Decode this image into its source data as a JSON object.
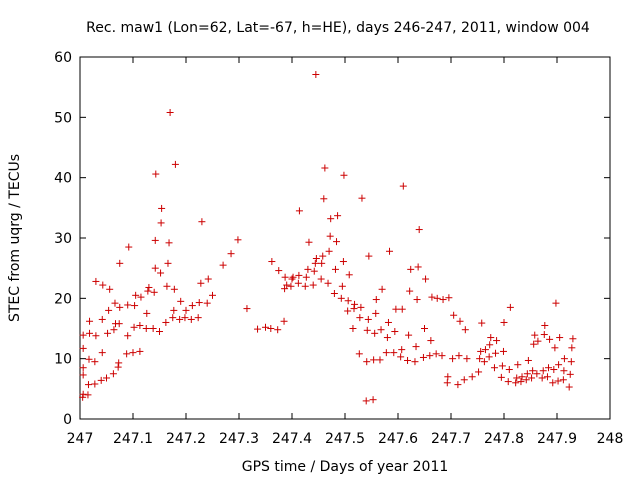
{
  "chart_data": {
    "type": "scatter",
    "title": "Rec. maw1 (Lon=62, Lat=-67, h=HE), days 246-247, 2011, window 004",
    "xlabel": "GPS time / Days of year 2011",
    "ylabel": "STEC from uqrg / TECUs",
    "xlim": [
      247,
      248
    ],
    "ylim": [
      0,
      60
    ],
    "xticks": [
      247,
      247.1,
      247.2,
      247.3,
      247.4,
      247.5,
      247.6,
      247.7,
      247.8,
      247.9,
      248
    ],
    "xtick_labels": [
      "247",
      "247.1",
      "247.2",
      "247.3",
      "247.4",
      "247.5",
      "247.6",
      "247.7",
      "247.8",
      "247.9",
      "248"
    ],
    "yticks": [
      0,
      10,
      20,
      30,
      40,
      50,
      60
    ],
    "ytick_labels": [
      "0",
      "10",
      "20",
      "30",
      "40",
      "50",
      "60"
    ],
    "grid": false,
    "marker": "+",
    "marker_color": "#cc0000",
    "points": [
      [
        247.005,
        3.6
      ],
      [
        247.006,
        4.1
      ],
      [
        247.006,
        7.3
      ],
      [
        247.006,
        8.5
      ],
      [
        247.006,
        11.7
      ],
      [
        247.006,
        13.9
      ],
      [
        247.015,
        4.0
      ],
      [
        247.016,
        5.7
      ],
      [
        247.017,
        9.9
      ],
      [
        247.018,
        14.2
      ],
      [
        247.018,
        16.2
      ],
      [
        247.028,
        5.8
      ],
      [
        247.028,
        9.5
      ],
      [
        247.03,
        13.8
      ],
      [
        247.03,
        22.8
      ],
      [
        247.04,
        6.4
      ],
      [
        247.042,
        11.0
      ],
      [
        247.042,
        16.5
      ],
      [
        247.043,
        22.2
      ],
      [
        247.05,
        6.8
      ],
      [
        247.052,
        14.2
      ],
      [
        247.054,
        18.0
      ],
      [
        247.056,
        21.5
      ],
      [
        247.063,
        7.5
      ],
      [
        247.064,
        14.8
      ],
      [
        247.066,
        19.2
      ],
      [
        247.067,
        15.8
      ],
      [
        247.072,
        8.6
      ],
      [
        247.073,
        9.3
      ],
      [
        247.074,
        15.8
      ],
      [
        247.075,
        18.5
      ],
      [
        247.075,
        25.8
      ],
      [
        247.088,
        10.8
      ],
      [
        247.09,
        13.8
      ],
      [
        247.09,
        18.9
      ],
      [
        247.092,
        28.5
      ],
      [
        247.1,
        11.0
      ],
      [
        247.102,
        15.2
      ],
      [
        247.103,
        18.8
      ],
      [
        247.105,
        20.5
      ],
      [
        247.113,
        11.2
      ],
      [
        247.113,
        15.5
      ],
      [
        247.115,
        20.2
      ],
      [
        247.125,
        15.0
      ],
      [
        247.126,
        17.5
      ],
      [
        247.128,
        21.2
      ],
      [
        247.13,
        21.8
      ],
      [
        247.138,
        15.0
      ],
      [
        247.14,
        21.0
      ],
      [
        247.142,
        25.0
      ],
      [
        247.142,
        29.6
      ],
      [
        247.143,
        40.6
      ],
      [
        247.15,
        14.5
      ],
      [
        247.152,
        24.2
      ],
      [
        247.153,
        32.5
      ],
      [
        247.154,
        34.9
      ],
      [
        247.162,
        16.0
      ],
      [
        247.164,
        22.0
      ],
      [
        247.166,
        25.8
      ],
      [
        247.168,
        29.2
      ],
      [
        247.17,
        50.8
      ],
      [
        247.175,
        16.8
      ],
      [
        247.177,
        18.0
      ],
      [
        247.178,
        21.5
      ],
      [
        247.18,
        42.2
      ],
      [
        247.188,
        16.5
      ],
      [
        247.19,
        19.5
      ],
      [
        247.198,
        16.8
      ],
      [
        247.2,
        18.0
      ],
      [
        247.21,
        16.5
      ],
      [
        247.212,
        18.8
      ],
      [
        247.223,
        16.8
      ],
      [
        247.225,
        19.3
      ],
      [
        247.228,
        22.5
      ],
      [
        247.23,
        32.7
      ],
      [
        247.24,
        19.2
      ],
      [
        247.242,
        23.2
      ],
      [
        247.25,
        20.5
      ],
      [
        247.27,
        25.5
      ],
      [
        247.285,
        27.4
      ],
      [
        247.298,
        29.7
      ],
      [
        247.315,
        18.3
      ],
      [
        247.335,
        14.9
      ],
      [
        247.35,
        15.2
      ],
      [
        247.36,
        15.0
      ],
      [
        247.362,
        26.1
      ],
      [
        247.373,
        14.8
      ],
      [
        247.375,
        24.6
      ],
      [
        247.385,
        16.2
      ],
      [
        247.386,
        21.6
      ],
      [
        247.387,
        23.5
      ],
      [
        247.39,
        22.2
      ],
      [
        247.398,
        22.0
      ],
      [
        247.4,
        23.2
      ],
      [
        247.402,
        23.5
      ],
      [
        247.412,
        22.5
      ],
      [
        247.413,
        23.8
      ],
      [
        247.414,
        34.5
      ],
      [
        247.425,
        22.0
      ],
      [
        247.427,
        23.5
      ],
      [
        247.43,
        24.8
      ],
      [
        247.432,
        29.3
      ],
      [
        247.44,
        22.2
      ],
      [
        247.442,
        24.5
      ],
      [
        247.444,
        25.8
      ],
      [
        247.445,
        57.1
      ],
      [
        247.446,
        26.6
      ],
      [
        247.455,
        23.2
      ],
      [
        247.456,
        25.8
      ],
      [
        247.458,
        27.0
      ],
      [
        247.46,
        36.5
      ],
      [
        247.462,
        41.6
      ],
      [
        247.468,
        22.5
      ],
      [
        247.47,
        27.8
      ],
      [
        247.472,
        30.3
      ],
      [
        247.473,
        33.2
      ],
      [
        247.48,
        20.8
      ],
      [
        247.482,
        24.8
      ],
      [
        247.484,
        29.4
      ],
      [
        247.486,
        33.7
      ],
      [
        247.493,
        20.0
      ],
      [
        247.495,
        22.0
      ],
      [
        247.497,
        26.1
      ],
      [
        247.498,
        40.4
      ],
      [
        247.505,
        17.9
      ],
      [
        247.506,
        19.6
      ],
      [
        247.508,
        23.9
      ],
      [
        247.515,
        15.0
      ],
      [
        247.517,
        18.3
      ],
      [
        247.518,
        19.0
      ],
      [
        247.527,
        10.8
      ],
      [
        247.528,
        16.8
      ],
      [
        247.53,
        18.5
      ],
      [
        247.532,
        36.6
      ],
      [
        247.54,
        3.0
      ],
      [
        247.541,
        9.5
      ],
      [
        247.542,
        14.7
      ],
      [
        247.544,
        16.5
      ],
      [
        247.545,
        27.0
      ],
      [
        247.553,
        3.2
      ],
      [
        247.554,
        9.8
      ],
      [
        247.556,
        14.2
      ],
      [
        247.558,
        17.5
      ],
      [
        247.559,
        19.8
      ],
      [
        247.566,
        9.8
      ],
      [
        247.568,
        14.8
      ],
      [
        247.57,
        21.5
      ],
      [
        247.578,
        11.0
      ],
      [
        247.58,
        13.5
      ],
      [
        247.582,
        16.0
      ],
      [
        247.584,
        27.8
      ],
      [
        247.592,
        11.0
      ],
      [
        247.594,
        14.5
      ],
      [
        247.596,
        18.2
      ],
      [
        247.605,
        10.3
      ],
      [
        247.607,
        11.5
      ],
      [
        247.608,
        18.2
      ],
      [
        247.61,
        38.6
      ],
      [
        247.618,
        9.7
      ],
      [
        247.62,
        13.9
      ],
      [
        247.622,
        21.2
      ],
      [
        247.624,
        24.8
      ],
      [
        247.632,
        9.5
      ],
      [
        247.634,
        12.0
      ],
      [
        247.636,
        19.8
      ],
      [
        247.638,
        25.2
      ],
      [
        247.64,
        31.4
      ],
      [
        247.648,
        10.2
      ],
      [
        247.65,
        15.0
      ],
      [
        247.652,
        23.2
      ],
      [
        247.66,
        10.5
      ],
      [
        247.662,
        13.0
      ],
      [
        247.664,
        20.2
      ],
      [
        247.672,
        10.8
      ],
      [
        247.674,
        20.0
      ],
      [
        247.683,
        10.5
      ],
      [
        247.685,
        19.8
      ],
      [
        247.693,
        6.0
      ],
      [
        247.694,
        7.0
      ],
      [
        247.696,
        20.1
      ],
      [
        247.703,
        10.0
      ],
      [
        247.705,
        17.2
      ],
      [
        247.713,
        5.7
      ],
      [
        247.715,
        10.5
      ],
      [
        247.717,
        16.2
      ],
      [
        247.725,
        6.5
      ],
      [
        247.727,
        14.8
      ],
      [
        247.73,
        10.0
      ],
      [
        247.74,
        7.0
      ],
      [
        247.752,
        7.8
      ],
      [
        247.754,
        10.0
      ],
      [
        247.756,
        11.2
      ],
      [
        247.758,
        15.9
      ],
      [
        247.763,
        9.5
      ],
      [
        247.765,
        11.5
      ],
      [
        247.772,
        10.3
      ],
      [
        247.773,
        12.3
      ],
      [
        247.775,
        13.5
      ],
      [
        247.782,
        8.5
      ],
      [
        247.784,
        10.9
      ],
      [
        247.786,
        13.0
      ],
      [
        247.795,
        6.9
      ],
      [
        247.797,
        8.8
      ],
      [
        247.799,
        11.2
      ],
      [
        247.8,
        16.0
      ],
      [
        247.808,
        6.2
      ],
      [
        247.81,
        8.2
      ],
      [
        247.812,
        18.5
      ],
      [
        247.822,
        6.0
      ],
      [
        247.824,
        6.8
      ],
      [
        247.826,
        9.0
      ],
      [
        247.832,
        6.2
      ],
      [
        247.834,
        7.0
      ],
      [
        247.842,
        6.5
      ],
      [
        247.844,
        7.5
      ],
      [
        247.846,
        9.7
      ],
      [
        247.852,
        6.8
      ],
      [
        247.854,
        8.0
      ],
      [
        247.856,
        12.4
      ],
      [
        247.858,
        13.9
      ],
      [
        247.862,
        7.5
      ],
      [
        247.864,
        12.9
      ],
      [
        247.872,
        6.8
      ],
      [
        247.874,
        8.0
      ],
      [
        247.876,
        14.0
      ],
      [
        247.877,
        15.5
      ],
      [
        247.882,
        7.0
      ],
      [
        247.884,
        8.5
      ],
      [
        247.886,
        13.2
      ],
      [
        247.892,
        6.0
      ],
      [
        247.894,
        8.2
      ],
      [
        247.896,
        11.8
      ],
      [
        247.898,
        19.2
      ],
      [
        247.902,
        6.3
      ],
      [
        247.903,
        9.0
      ],
      [
        247.905,
        13.5
      ],
      [
        247.912,
        6.5
      ],
      [
        247.913,
        8.0
      ],
      [
        247.914,
        10.0
      ],
      [
        247.923,
        5.3
      ],
      [
        247.925,
        7.4
      ],
      [
        247.927,
        9.5
      ],
      [
        247.928,
        11.8
      ],
      [
        247.93,
        13.3
      ]
    ]
  }
}
